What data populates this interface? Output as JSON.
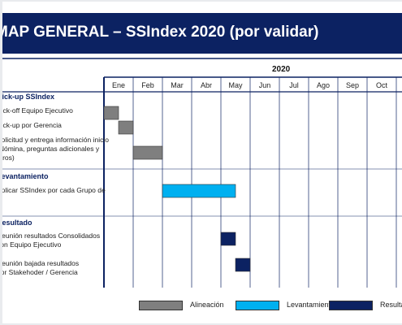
{
  "slide": {
    "title": "MAP GENERAL – SSIndex 2020 (por validar)"
  },
  "timeline": {
    "year": "2020",
    "months": [
      "Ene",
      "Feb",
      "Mar",
      "Abr",
      "May",
      "Jun",
      "Jul",
      "Ago",
      "Sep",
      "Oct"
    ]
  },
  "sections": [
    {
      "heading": "Kick-up SSIndex",
      "tasks": [
        {
          "label_lines": [
            "Kick-off Equipo Ejecutivo"
          ],
          "phase": "alineacion",
          "start_month": 1,
          "end_month": 1.5
        },
        {
          "label_lines": [
            "Kick-up por Gerencia"
          ],
          "phase": "alineacion",
          "start_month": 1.5,
          "end_month": 2
        },
        {
          "label_lines": [
            "Solicitud y entrega información inicio",
            "(Nómina, preguntas adicionales y",
            "otros)"
          ],
          "phase": "alineacion",
          "start_month": 2,
          "end_month": 3
        }
      ]
    },
    {
      "heading": "Levantamiento",
      "tasks": [
        {
          "label_lines": [
            "Aplicar SSIndex por cada Grupo de"
          ],
          "phase": "levantamiento",
          "start_month": 3,
          "end_month": 5.5
        }
      ]
    },
    {
      "heading": "Resultado",
      "tasks": [
        {
          "label_lines": [
            "Reunión resultados Consolidados",
            "con Equipo Ejecutivo"
          ],
          "phase": "resultado",
          "start_month": 5,
          "end_month": 5.5
        },
        {
          "label_lines": [
            "Reunión bajada resultados",
            "por Stakehoder / Gerencia"
          ],
          "phase": "resultado",
          "start_month": 5.5,
          "end_month": 6
        }
      ]
    }
  ],
  "legend": [
    {
      "key": "alineacion",
      "label": "Alineación",
      "color": "#7f7f7f"
    },
    {
      "key": "levantamiento",
      "label": "Levantamiento",
      "color": "#00b0f0"
    },
    {
      "key": "resultado",
      "label": "Resultados",
      "color": "#0c2262"
    }
  ],
  "colors": {
    "title_bar": "#0c2262",
    "section_heading": "#0c2262",
    "grid": "#0c2262"
  }
}
